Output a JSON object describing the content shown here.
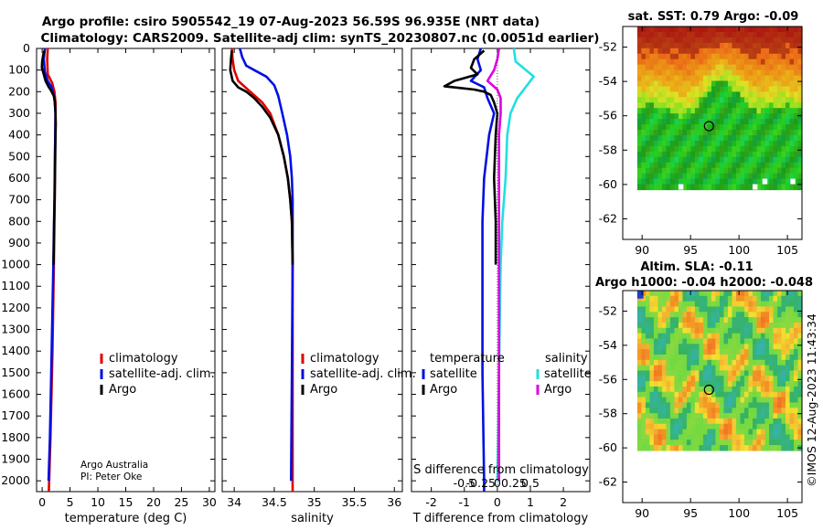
{
  "header": {
    "line1": "Argo profile: csiro 5905542_19 07-Aug-2023 56.59S 96.935E (NRT data)",
    "line2": "Climatology: CARS2009. Satellite-adj clim: synTS_20230807.nc (0.0051d earlier)"
  },
  "credit": {
    "org": "Argo Australia",
    "pi": "PI: Peter Oke"
  },
  "stamp": "©IMOS 12-Aug-2023 11:43:34",
  "colors": {
    "clim": "#e00000",
    "sat": "#0010e0",
    "argo": "#000000",
    "sat_s": "#20e0e0",
    "argo_s": "#e000e0"
  },
  "chart_data": [
    {
      "type": "line",
      "id": "temperature",
      "xlabel": "temperature (deg C)",
      "ylabel": "",
      "xlim": [
        -1,
        31
      ],
      "ylim": [
        2050,
        0
      ],
      "xticks": [
        0,
        5,
        10,
        15,
        20,
        25,
        30
      ],
      "xtick_labels": [
        "0",
        "5",
        "10",
        "15",
        "20",
        "25",
        "30"
      ],
      "yticks": [
        0,
        100,
        200,
        300,
        400,
        500,
        600,
        700,
        800,
        900,
        1000,
        1100,
        1200,
        1300,
        1400,
        1500,
        1600,
        1700,
        1800,
        1900,
        2000
      ],
      "ytick_labels": [
        "0",
        "100",
        "200",
        "300",
        "400",
        "500",
        "600",
        "700",
        "800",
        "900",
        "1000",
        "1100",
        "1200",
        "1300",
        "1400",
        "1500",
        "1600",
        "1700",
        "1800",
        "1900",
        "2000"
      ],
      "legend": [
        "climatology",
        "satellite-adj. clim.",
        "Argo"
      ],
      "legend_location": "lower-right",
      "series": [
        {
          "name": "climatology",
          "color": "#e00000",
          "points": [
            [
              1.0,
              0
            ],
            [
              0.9,
              50
            ],
            [
              1.0,
              120
            ],
            [
              1.8,
              160
            ],
            [
              2.2,
              200
            ],
            [
              2.4,
              250
            ],
            [
              2.4,
              300
            ],
            [
              2.35,
              400
            ],
            [
              2.3,
              500
            ],
            [
              2.25,
              700
            ],
            [
              2.1,
              1000
            ],
            [
              1.85,
              1400
            ],
            [
              1.5,
              1800
            ],
            [
              1.2,
              2050
            ]
          ]
        },
        {
          "name": "satellite-adj. clim.",
          "color": "#0010e0",
          "points": [
            [
              0.5,
              0
            ],
            [
              0.3,
              50
            ],
            [
              0.5,
              110
            ],
            [
              1.0,
              150
            ],
            [
              1.7,
              180
            ],
            [
              2.2,
              230
            ],
            [
              2.4,
              300
            ],
            [
              2.35,
              400
            ],
            [
              2.3,
              500
            ],
            [
              2.2,
              700
            ],
            [
              2.0,
              1000
            ],
            [
              1.7,
              1400
            ],
            [
              1.4,
              1800
            ],
            [
              1.15,
              2000
            ]
          ]
        },
        {
          "name": "Argo",
          "color": "#000000",
          "points": [
            [
              0.4,
              10
            ],
            [
              0.2,
              30
            ],
            [
              0.0,
              60
            ],
            [
              -0.05,
              90
            ],
            [
              0.3,
              120
            ],
            [
              0.6,
              150
            ],
            [
              1.1,
              175
            ],
            [
              1.6,
              195
            ],
            [
              2.1,
              220
            ],
            [
              2.3,
              250
            ],
            [
              2.4,
              300
            ],
            [
              2.45,
              350
            ],
            [
              2.4,
              400
            ],
            [
              2.35,
              500
            ],
            [
              2.3,
              600
            ],
            [
              2.25,
              700
            ],
            [
              2.15,
              800
            ],
            [
              2.05,
              1000
            ]
          ]
        }
      ]
    },
    {
      "type": "line",
      "id": "salinity",
      "xlabel": "salinity",
      "xlim": [
        33.85,
        36.1
      ],
      "ylim": [
        2050,
        0
      ],
      "xticks": [
        34,
        34.5,
        35,
        35.5,
        36
      ],
      "xtick_labels": [
        "34",
        "34.5",
        "35",
        "35.5",
        "36"
      ],
      "legend": [
        "climatology",
        "satellite-adj. clim.",
        "Argo"
      ],
      "legend_location": "lower-right",
      "series": [
        {
          "name": "climatology",
          "color": "#e00000",
          "points": [
            [
              33.97,
              0
            ],
            [
              33.98,
              50
            ],
            [
              34.0,
              100
            ],
            [
              34.05,
              150
            ],
            [
              34.2,
              200
            ],
            [
              34.35,
              250
            ],
            [
              34.45,
              300
            ],
            [
              34.55,
              400
            ],
            [
              34.62,
              500
            ],
            [
              34.67,
              600
            ],
            [
              34.7,
              700
            ],
            [
              34.72,
              800
            ],
            [
              34.73,
              1000
            ],
            [
              34.73,
              1500
            ],
            [
              34.73,
              2050
            ]
          ]
        },
        {
          "name": "satellite-adj. clim.",
          "color": "#0010e0",
          "points": [
            [
              34.07,
              0
            ],
            [
              34.1,
              40
            ],
            [
              34.15,
              80
            ],
            [
              34.25,
              100
            ],
            [
              34.4,
              130
            ],
            [
              34.5,
              170
            ],
            [
              34.55,
              220
            ],
            [
              34.6,
              300
            ],
            [
              34.66,
              400
            ],
            [
              34.7,
              500
            ],
            [
              34.72,
              600
            ],
            [
              34.73,
              700
            ],
            [
              34.73,
              1000
            ],
            [
              34.72,
              1500
            ],
            [
              34.71,
              2000
            ]
          ]
        },
        {
          "name": "Argo",
          "color": "#000000",
          "points": [
            [
              33.97,
              10
            ],
            [
              33.96,
              50
            ],
            [
              33.95,
              100
            ],
            [
              33.98,
              150
            ],
            [
              34.05,
              180
            ],
            [
              34.15,
              200
            ],
            [
              34.25,
              230
            ],
            [
              34.35,
              270
            ],
            [
              34.45,
              320
            ],
            [
              34.55,
              400
            ],
            [
              34.62,
              500
            ],
            [
              34.67,
              600
            ],
            [
              34.7,
              700
            ],
            [
              34.72,
              800
            ],
            [
              34.73,
              1000
            ]
          ]
        }
      ]
    },
    {
      "type": "line",
      "id": "difference",
      "xlabel": "T difference from climatology",
      "xlabel_top": "S difference from climatology",
      "xlim": [
        -2.6,
        2.8
      ],
      "ylim": [
        2050,
        0
      ],
      "xticks": [
        -2,
        -1,
        0,
        1,
        2
      ],
      "xtick_labels": [
        "-2",
        "-1",
        "0",
        "1",
        "2"
      ],
      "s_ticks": [
        -0.5,
        -0.25,
        0,
        0.25,
        0.5
      ],
      "s_tick_labels": [
        "-0.5",
        "-0.25",
        "0",
        "0.25",
        "0.5"
      ],
      "legend_headers": [
        "temperature",
        "salinity"
      ],
      "legend": [
        "satellite",
        "Argo",
        "satellite",
        "Argo"
      ],
      "legend_location": "lower-center",
      "series": [
        {
          "name": "temperature satellite",
          "color": "#0010e0",
          "points": [
            [
              -0.5,
              0
            ],
            [
              -0.6,
              50
            ],
            [
              -0.5,
              100
            ],
            [
              -0.8,
              150
            ],
            [
              -0.4,
              180
            ],
            [
              -0.3,
              230
            ],
            [
              -0.1,
              300
            ],
            [
              -0.25,
              400
            ],
            [
              -0.4,
              600
            ],
            [
              -0.45,
              800
            ],
            [
              -0.45,
              1000
            ],
            [
              -0.45,
              1500
            ],
            [
              -0.4,
              2000
            ],
            [
              -0.4,
              2050
            ]
          ]
        },
        {
          "name": "temperature Argo",
          "color": "#000000",
          "points": [
            [
              -0.4,
              10
            ],
            [
              -0.7,
              50
            ],
            [
              -0.8,
              90
            ],
            [
              -0.6,
              120
            ],
            [
              -1.3,
              150
            ],
            [
              -1.6,
              175
            ],
            [
              -0.7,
              190
            ],
            [
              -0.4,
              200
            ],
            [
              -0.2,
              215
            ],
            [
              -0.1,
              250
            ],
            [
              0.0,
              300
            ],
            [
              -0.05,
              400
            ],
            [
              -0.1,
              600
            ],
            [
              -0.05,
              800
            ],
            [
              -0.05,
              1000
            ]
          ]
        },
        {
          "name": "salinity satellite",
          "color": "#20e0e0",
          "points": [
            [
              0.5,
              0
            ],
            [
              0.55,
              60
            ],
            [
              1.1,
              130
            ],
            [
              0.8,
              190
            ],
            [
              0.6,
              230
            ],
            [
              0.4,
              300
            ],
            [
              0.3,
              400
            ],
            [
              0.25,
              600
            ],
            [
              0.15,
              800
            ],
            [
              0.1,
              1000
            ],
            [
              0.05,
              1500
            ],
            [
              0.0,
              2000
            ]
          ]
        },
        {
          "name": "salinity Argo",
          "color": "#e000e0",
          "points": [
            [
              0.05,
              0
            ],
            [
              0.0,
              50
            ],
            [
              -0.1,
              100
            ],
            [
              -0.3,
              150
            ],
            [
              0.0,
              190
            ],
            [
              0.1,
              230
            ],
            [
              0.1,
              300
            ],
            [
              0.05,
              400
            ],
            [
              0.05,
              600
            ],
            [
              0.05,
              800
            ],
            [
              0.05,
              1000
            ],
            [
              0.05,
              1500
            ],
            [
              0.05,
              2000
            ]
          ]
        }
      ]
    },
    {
      "type": "heatmap",
      "id": "sst_map",
      "title": "sat. SST: 0.79 Argo: -0.09",
      "xlim": [
        88,
        106.5
      ],
      "ylim": [
        -63.2,
        -50.8
      ],
      "xticks": [
        90,
        95,
        100,
        105
      ],
      "xtick_labels": [
        "90",
        "95",
        "100",
        "105"
      ],
      "yticks": [
        -52,
        -54,
        -56,
        -58,
        -60,
        -62
      ],
      "ytick_labels": [
        "-52",
        "-54",
        "-56",
        "-58",
        "-60",
        "-62"
      ],
      "marker": [
        96.9,
        -56.6
      ]
    },
    {
      "type": "heatmap",
      "id": "sla_map",
      "title_line1": "Altim. SLA: -0.11",
      "title_line2": "Argo h1000: -0.04 h2000: -0.048",
      "xlim": [
        88,
        106.5
      ],
      "ylim": [
        -63.2,
        -50.8
      ],
      "xticks": [
        90,
        95,
        100,
        105
      ],
      "xtick_labels": [
        "90",
        "95",
        "100",
        "105"
      ],
      "yticks": [
        -52,
        -54,
        -56,
        -58,
        -60,
        -62
      ],
      "ytick_labels": [
        "-52",
        "-54",
        "-56",
        "-58",
        "-60",
        "-62"
      ],
      "marker": [
        96.9,
        -56.6
      ]
    }
  ]
}
